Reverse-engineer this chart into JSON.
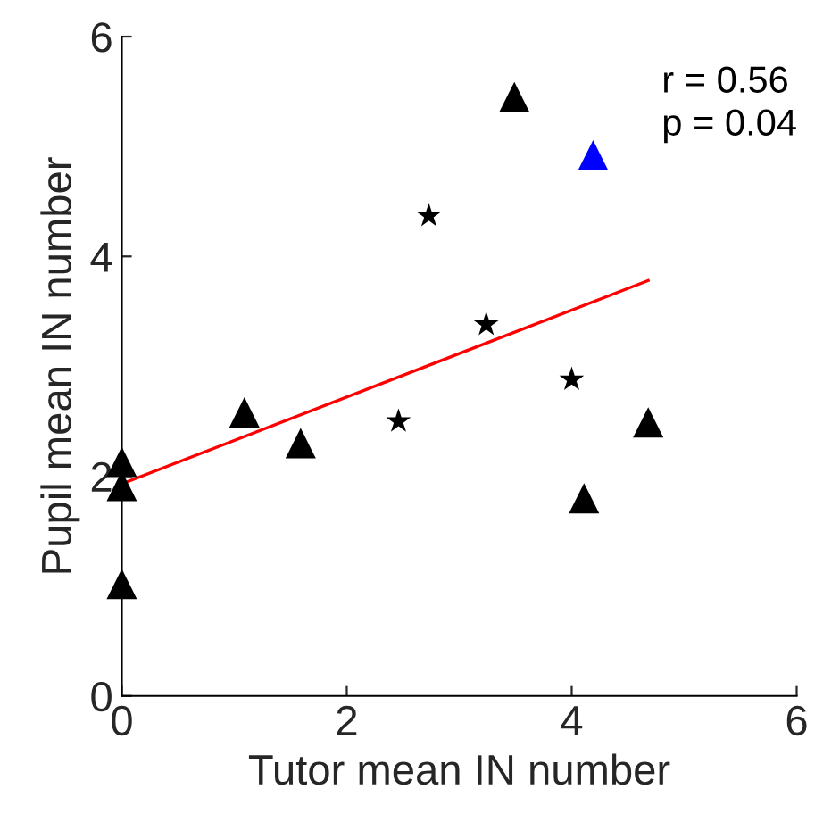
{
  "chart_data": {
    "type": "scatter",
    "xlabel": "Tutor mean IN number",
    "ylabel": "Pupil mean IN number",
    "xlim": [
      0,
      6
    ],
    "ylim": [
      0,
      6
    ],
    "xticks": [
      0,
      2,
      4,
      6
    ],
    "yticks": [
      0,
      2,
      4,
      6
    ],
    "grid": false,
    "legend": false,
    "annotations": [
      "r = 0.56",
      "p = 0.04"
    ],
    "series": [
      {
        "marker": "triangle",
        "color": "#000000",
        "x": [
          0,
          0,
          0,
          1.09,
          1.59,
          3.49,
          4.11,
          4.68
        ],
        "values": [
          2.13,
          1.91,
          1.02,
          2.58,
          2.3,
          5.45,
          1.8,
          2.49
        ]
      },
      {
        "marker": "triangle",
        "color": "#0000ff",
        "x": [
          4.19
        ],
        "values": [
          4.92
        ]
      },
      {
        "marker": "star",
        "color": "#000000",
        "x": [
          2.73,
          2.46,
          3.24,
          4.0
        ],
        "values": [
          4.37,
          2.5,
          3.38,
          2.88
        ]
      },
      {
        "type": "line",
        "marker": "none",
        "color": "#ff0000",
        "x": [
          0,
          4.68
        ],
        "values": [
          1.93,
          3.78
        ]
      }
    ]
  }
}
